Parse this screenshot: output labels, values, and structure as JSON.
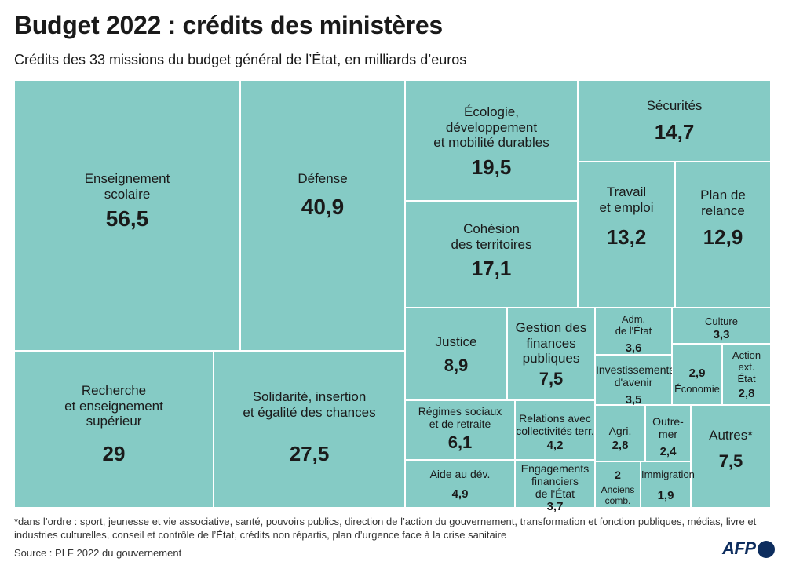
{
  "header": {
    "title": "Budget 2022 : crédits des ministères",
    "subtitle": "Crédits des 33 missions du budget général de l’État, en milliards d’euros"
  },
  "footer": {
    "footnote": "*dans l’ordre : sport, jeunesse et vie associative, santé, pouvoirs publics, direction de l’action du gouvernement, transformation et fonction publiques, médias, livre et industries culturelles, conseil et contrôle de l’État, crédits non répartis, plan d’urgence face à la crise sanitaire",
    "source": "Source : PLF 2022 du gouvernement",
    "logo": "AFP"
  },
  "colors": {
    "cell": "#85cbc5",
    "text": "#1a1a1a",
    "logo": "#0d2d5e"
  },
  "chart_data": {
    "type": "treemap",
    "title": "Budget 2022 : crédits des ministères",
    "unit": "milliards d’euros",
    "items": [
      {
        "name": "Enseignement scolaire",
        "label": "Enseignement\nscolaire",
        "value": 56.5,
        "display": "56,5"
      },
      {
        "name": "Défense",
        "label": "Défense",
        "value": 40.9,
        "display": "40,9"
      },
      {
        "name": "Recherche et enseignement supérieur",
        "label": "Recherche\net enseignement\nsupérieur",
        "value": 29,
        "display": "29"
      },
      {
        "name": "Solidarité, insertion et égalité des chances",
        "label": "Solidarité, insertion\net égalité des chances",
        "value": 27.5,
        "display": "27,5"
      },
      {
        "name": "Écologie, développement et mobilité durables",
        "label": "Écologie,\ndéveloppement\net mobilité durables",
        "value": 19.5,
        "display": "19,5"
      },
      {
        "name": "Cohésion des territoires",
        "label": "Cohésion\ndes territoires",
        "value": 17.1,
        "display": "17,1"
      },
      {
        "name": "Sécurités",
        "label": "Sécurités",
        "value": 14.7,
        "display": "14,7"
      },
      {
        "name": "Travail et emploi",
        "label": "Travail\net emploi",
        "value": 13.2,
        "display": "13,2"
      },
      {
        "name": "Plan de relance",
        "label": "Plan de\nrelance",
        "value": 12.9,
        "display": "12,9"
      },
      {
        "name": "Justice",
        "label": "Justice",
        "value": 8.9,
        "display": "8,9"
      },
      {
        "name": "Gestion des finances publiques",
        "label": "Gestion des\nfinances\npubliques",
        "value": 7.5,
        "display": "7,5"
      },
      {
        "name": "Autres",
        "label": "Autres*",
        "value": 7.5,
        "display": "7,5"
      },
      {
        "name": "Régimes sociaux et de retraite",
        "label": "Régimes sociaux\net de retraite",
        "value": 6.1,
        "display": "6,1"
      },
      {
        "name": "Aide au développement",
        "label": "Aide au dév.",
        "value": 4.9,
        "display": "4,9"
      },
      {
        "name": "Relations avec collectivités territoriales",
        "label": "Relations avec\ncollectivités terr.",
        "value": 4.2,
        "display": "4,2"
      },
      {
        "name": "Engagements financiers de l'État",
        "label": "Engagements\nfinanciers\nde l'État",
        "value": 3.7,
        "display": "3,7"
      },
      {
        "name": "Administration générale de l'État",
        "label": "Adm.\nde l'État",
        "value": 3.6,
        "display": "3,6"
      },
      {
        "name": "Investissements d'avenir",
        "label": "Investissements\nd'avenir",
        "value": 3.5,
        "display": "3,5"
      },
      {
        "name": "Culture",
        "label": "Culture",
        "value": 3.3,
        "display": "3,3"
      },
      {
        "name": "Économie",
        "label": "Économie",
        "value": 2.9,
        "display": "2,9"
      },
      {
        "name": "Action extérieure de l'État",
        "label": "Action\next.\nÉtat",
        "value": 2.8,
        "display": "2,8"
      },
      {
        "name": "Agriculture",
        "label": "Agri.",
        "value": 2.8,
        "display": "2,8"
      },
      {
        "name": "Outre-mer",
        "label": "Outre-\nmer",
        "value": 2.4,
        "display": "2,4"
      },
      {
        "name": "Anciens combattants",
        "label": "Anciens\ncomb.",
        "value": 2,
        "display": "2"
      },
      {
        "name": "Immigration",
        "label": "Immigration",
        "value": 1.9,
        "display": "1,9"
      }
    ]
  }
}
